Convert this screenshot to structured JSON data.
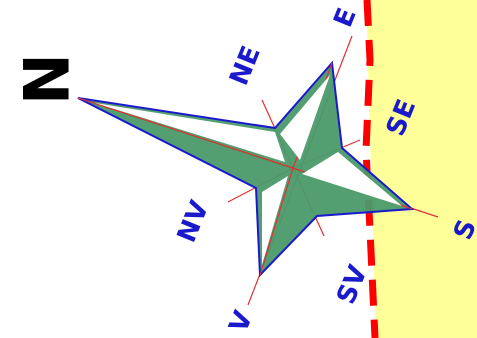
{
  "compass": {
    "labels": {
      "north": "N",
      "northeast": "NE",
      "east": "E",
      "southeast": "SE",
      "south": "S",
      "southwest": "SV",
      "west": "V",
      "northwest": "NV"
    }
  },
  "colors": {
    "background": "#ffffff",
    "zone_fill": "#ffff99",
    "boundary_line": "#ff0000",
    "star_fill": "#4a9a6a",
    "star_outline": "#1a1acc",
    "spoke_line": "#e03030",
    "label_color": "#1a1acc",
    "north_label_color": "#000000"
  }
}
